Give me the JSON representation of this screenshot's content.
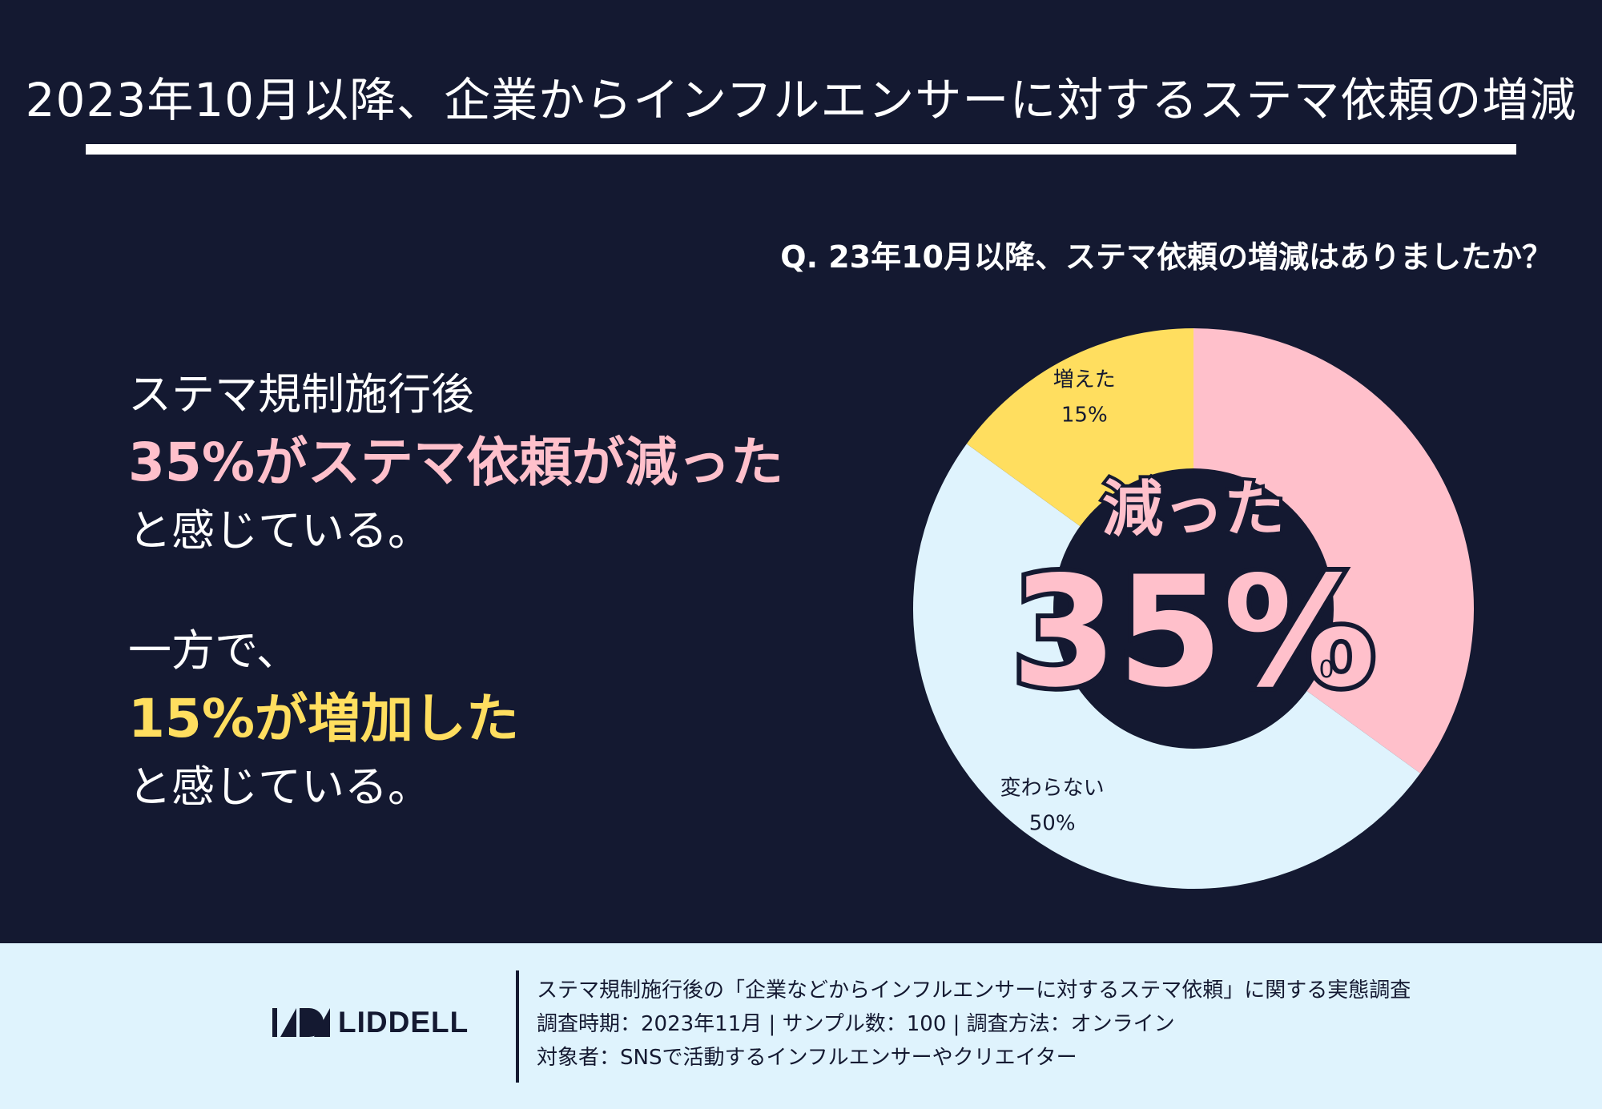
{
  "header": {
    "title": "2023年10月以降、企業からインフルエンサーに対するステマ依頼の増減"
  },
  "question": "Q. 23年10月以降、ステマ依頼の増減はありましたか？",
  "summary": {
    "line1": "ステマ規制施行後",
    "line2": "35%がステマ依頼が減った",
    "line3": "と感じている。",
    "line4": "一方で、",
    "line5": "15%が増加した",
    "line6": "と感じている。"
  },
  "chart_data": {
    "type": "pie",
    "donut": true,
    "unit": "%",
    "slices": [
      {
        "label": "減った",
        "value": 35,
        "value_label": "",
        "color": "#ffc0cb"
      },
      {
        "label": "変わらない",
        "value": 50,
        "value_label": "50%",
        "color": "#dff3fd"
      },
      {
        "label": "増えた",
        "value": 15,
        "value_label": "15%",
        "color": "#ffde5f"
      }
    ],
    "center": {
      "label": "減った",
      "value": "35%"
    },
    "stray_label": "0"
  },
  "footer": {
    "logo_text": "LIDDELL",
    "note1": "ステマ規制施行後の「企業などからインフルエンサーに対するステマ依頼」に関する実態調査",
    "note2": "調査時期：2023年11月 | サンプル数：100 | 調査方法：オンライン",
    "note3": "対象者：SNSで活動するインフルエンサーやクリエイター"
  },
  "colors": {
    "background": "#141931",
    "pink": "#ffc0cb",
    "yellow": "#ffde5f",
    "light_blue": "#dff3fd"
  }
}
